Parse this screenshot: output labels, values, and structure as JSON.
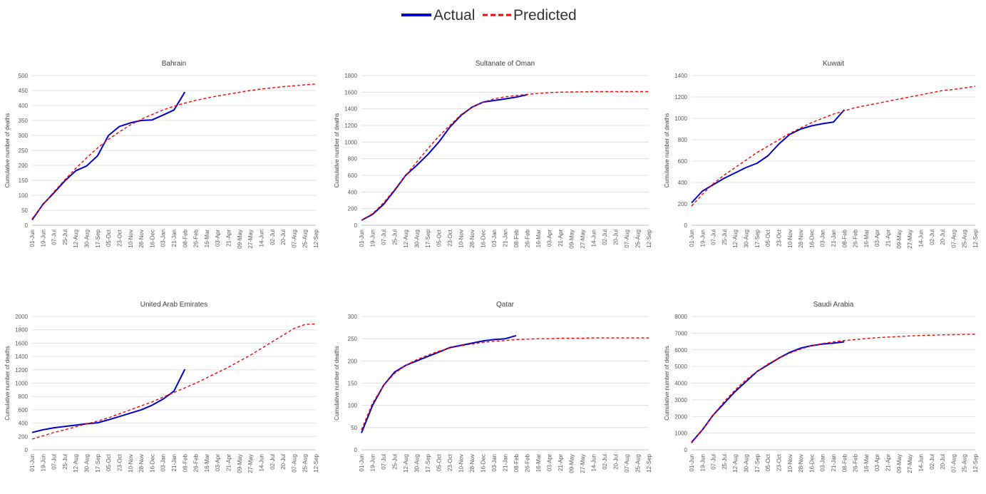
{
  "legend": {
    "actual_label": "Actual",
    "predicted_label": "Predicted",
    "actual_color": "#0000cc",
    "predicted_color": "#ff0000"
  },
  "chart_data": [
    {
      "type": "line",
      "title": "Bahrain",
      "ylabel": "Cumulative number of deaths",
      "ylim": [
        0,
        500
      ],
      "yticks": [
        0,
        50,
        100,
        150,
        200,
        250,
        300,
        350,
        400,
        450,
        500
      ],
      "categories": [
        "01-Jun",
        "19-Jun",
        "07-Jul",
        "25-Jul",
        "12-Aug",
        "30-Aug",
        "17-Sep",
        "05-Oct",
        "23-Oct",
        "10-Nov",
        "28-Nov",
        "16-Dec",
        "03-Jan",
        "21-Jan",
        "08-Feb",
        "26-Feb",
        "16-Mar",
        "03-Apr",
        "21-Apr",
        "09-May",
        "27-May",
        "14-Jun",
        "02-Jul",
        "20-Jul",
        "07-Aug",
        "25-Aug",
        "12-Sep"
      ],
      "series": [
        {
          "name": "Actual",
          "x": [
            0,
            1,
            2,
            3,
            4,
            5,
            6,
            7,
            8,
            9,
            10,
            11,
            12,
            13,
            14,
            15
          ],
          "values": [
            18,
            70,
            108,
            148,
            182,
            198,
            232,
            300,
            330,
            342,
            350,
            352,
            368,
            385,
            445,
            null
          ]
        },
        {
          "name": "Predicted",
          "x": [
            0,
            1,
            2,
            3,
            4,
            5,
            6,
            7,
            8,
            9,
            10,
            11,
            12,
            13,
            14,
            15,
            16,
            17,
            18,
            19,
            20,
            21,
            22,
            23,
            24,
            25,
            26
          ],
          "values": [
            22,
            68,
            112,
            152,
            190,
            225,
            258,
            287,
            312,
            335,
            354,
            370,
            385,
            398,
            408,
            417,
            425,
            432,
            438,
            444,
            450,
            455,
            459,
            463,
            466,
            469,
            472
          ]
        }
      ]
    },
    {
      "type": "line",
      "title": "Sultanate of Oman",
      "ylabel": "Cumulative number of deaths",
      "ylim": [
        0,
        1800
      ],
      "yticks": [
        0,
        200,
        400,
        600,
        800,
        1000,
        1200,
        1400,
        1600,
        1800
      ],
      "categories": [
        "01-Jun",
        "19-Jun",
        "07-Jul",
        "25-Jul",
        "12-Aug",
        "30-Aug",
        "17-Sep",
        "05-Oct",
        "23-Oct",
        "10-Nov",
        "28-Nov",
        "16-Dec",
        "03-Jan",
        "21-Jan",
        "08-Feb",
        "26-Feb",
        "16-Mar",
        "03-Apr",
        "21-Apr",
        "09-May",
        "27-May",
        "14-Jun",
        "02-Jul",
        "20-Jul",
        "07-Aug",
        "25-Aug",
        "12-Sep"
      ],
      "series": [
        {
          "name": "Actual",
          "x": [
            0,
            1,
            2,
            3,
            4,
            5,
            6,
            7,
            8,
            9,
            10,
            11,
            12,
            13,
            14,
            15
          ],
          "values": [
            60,
            130,
            250,
            420,
            600,
            720,
            850,
            1000,
            1180,
            1320,
            1420,
            1480,
            1500,
            1520,
            1540,
            1570
          ]
        },
        {
          "name": "Predicted",
          "x": [
            0,
            1,
            2,
            3,
            4,
            5,
            6,
            7,
            8,
            9,
            10,
            11,
            12,
            13,
            14,
            15,
            16,
            17,
            18,
            19,
            20,
            21,
            22,
            23,
            24,
            25,
            26
          ],
          "values": [
            60,
            140,
            270,
            430,
            600,
            760,
            920,
            1070,
            1200,
            1330,
            1420,
            1480,
            1520,
            1545,
            1560,
            1575,
            1585,
            1595,
            1600,
            1603,
            1605,
            1607,
            1608,
            1608,
            1608,
            1608,
            1608
          ]
        }
      ]
    },
    {
      "type": "line",
      "title": "Kuwait",
      "ylabel": "Cumulative number of deaths",
      "ylim": [
        0,
        1400
      ],
      "yticks": [
        0,
        200,
        400,
        600,
        800,
        1000,
        1200,
        1400
      ],
      "categories": [
        "01-Jun",
        "19-Jun",
        "07-Jul",
        "25-Jul",
        "12-Aug",
        "30-Aug",
        "17-Sep",
        "05-Oct",
        "23-Oct",
        "10-Nov",
        "28-Nov",
        "16-Dec",
        "03-Jan",
        "21-Jan",
        "08-Feb",
        "26-Feb",
        "16-Mar",
        "03-Apr",
        "21-Apr",
        "09-May",
        "27-May",
        "14-Jun",
        "02-Jul",
        "20-Jul",
        "07-Aug",
        "25-Aug",
        "12-Sep"
      ],
      "series": [
        {
          "name": "Actual",
          "x": [
            0,
            1,
            2,
            3,
            4,
            5,
            6,
            7,
            8,
            9,
            10,
            11,
            12,
            13,
            14,
            15
          ],
          "values": [
            210,
            320,
            380,
            440,
            490,
            540,
            580,
            650,
            760,
            850,
            900,
            930,
            950,
            965,
            1080,
            null
          ]
        },
        {
          "name": "Predicted",
          "x": [
            0,
            1,
            2,
            3,
            4,
            5,
            6,
            7,
            8,
            9,
            10,
            11,
            12,
            13,
            14,
            15,
            16,
            17,
            18,
            19,
            20,
            21,
            22,
            23,
            24,
            25,
            26
          ],
          "values": [
            180,
            290,
            390,
            470,
            540,
            610,
            680,
            740,
            800,
            860,
            910,
            960,
            1000,
            1040,
            1070,
            1100,
            1120,
            1140,
            1160,
            1180,
            1200,
            1220,
            1240,
            1260,
            1270,
            1285,
            1300
          ]
        }
      ]
    },
    {
      "type": "line",
      "title": "United Arab Emirates",
      "ylabel": "Cumulative number of deaths",
      "ylim": [
        0,
        2000
      ],
      "yticks": [
        0,
        200,
        400,
        600,
        800,
        1000,
        1200,
        1400,
        1600,
        1800,
        2000
      ],
      "categories": [
        "01-Jun",
        "19-Jun",
        "07-Jul",
        "25-Jul",
        "12-Aug",
        "30-Aug",
        "17-Sep",
        "05-Oct",
        "23-Oct",
        "10-Nov",
        "28-Nov",
        "16-Dec",
        "03-Jan",
        "21-Jan",
        "08-Feb",
        "26-Feb",
        "16-Mar",
        "03-Apr",
        "21-Apr",
        "09-May",
        "27-May",
        "14-Jun",
        "02-Jul",
        "20-Jul",
        "07-Aug",
        "25-Aug",
        "12-Sep"
      ],
      "series": [
        {
          "name": "Actual",
          "x": [
            0,
            1,
            2,
            3,
            4,
            5,
            6,
            7,
            8,
            9,
            10,
            11,
            12,
            13,
            14,
            15
          ],
          "values": [
            260,
            300,
            330,
            350,
            370,
            390,
            405,
            450,
            500,
            550,
            600,
            670,
            760,
            880,
            1210,
            null
          ]
        },
        {
          "name": "Predicted",
          "x": [
            0,
            1,
            2,
            3,
            4,
            5,
            6,
            7,
            8,
            9,
            10,
            11,
            12,
            13,
            14,
            15,
            16,
            17,
            18,
            19,
            20,
            21,
            22,
            23,
            24,
            25,
            26
          ],
          "values": [
            160,
            210,
            260,
            300,
            345,
            390,
            430,
            480,
            540,
            600,
            660,
            720,
            790,
            860,
            930,
            1000,
            1080,
            1160,
            1240,
            1330,
            1420,
            1520,
            1620,
            1720,
            1820,
            1880,
            1890
          ]
        }
      ]
    },
    {
      "type": "line",
      "title": "Qatar",
      "ylabel": "Cumulative number of deaths",
      "ylim": [
        0,
        300
      ],
      "yticks": [
        0,
        50,
        100,
        150,
        200,
        250,
        300
      ],
      "categories": [
        "01-Jun",
        "19-Jun",
        "07-Jul",
        "25-Jul",
        "12-Aug",
        "30-Aug",
        "17-Sep",
        "05-Oct",
        "23-Oct",
        "10-Nov",
        "28-Nov",
        "16-Dec",
        "03-Jan",
        "21-Jan",
        "08-Feb",
        "26-Feb",
        "16-Mar",
        "03-Apr",
        "21-Apr",
        "09-May",
        "27-May",
        "14-Jun",
        "02-Jul",
        "20-Jul",
        "07-Aug",
        "25-Aug",
        "12-Sep"
      ],
      "series": [
        {
          "name": "Actual",
          "x": [
            0,
            1,
            2,
            3,
            4,
            5,
            6,
            7,
            8,
            9,
            10,
            11,
            12,
            13,
            14,
            15
          ],
          "values": [
            38,
            100,
            145,
            175,
            190,
            200,
            210,
            220,
            230,
            235,
            240,
            245,
            248,
            250,
            257,
            null
          ]
        },
        {
          "name": "Predicted",
          "x": [
            0,
            1,
            2,
            3,
            4,
            5,
            6,
            7,
            8,
            9,
            10,
            11,
            12,
            13,
            14,
            15,
            16,
            17,
            18,
            19,
            20,
            21,
            22,
            23,
            24,
            25,
            26
          ],
          "values": [
            45,
            105,
            145,
            172,
            190,
            203,
            213,
            222,
            229,
            234,
            238,
            242,
            244,
            246,
            248,
            249,
            250,
            250,
            251,
            251,
            251,
            252,
            252,
            252,
            252,
            252,
            252
          ]
        }
      ]
    },
    {
      "type": "line",
      "title": "Saudi Arabia",
      "ylabel": "Cumulative number of deaths",
      "ylim": [
        0,
        8000
      ],
      "yticks": [
        0,
        1000,
        2000,
        3000,
        4000,
        5000,
        6000,
        7000,
        8000
      ],
      "categories": [
        "01-Jun",
        "19-Jun",
        "07-Jul",
        "25-Jul",
        "12-Aug",
        "30-Aug",
        "17-Sep",
        "05-Oct",
        "23-Oct",
        "10-Nov",
        "28-Nov",
        "16-Dec",
        "03-Jan",
        "21-Jan",
        "08-Feb",
        "26-Feb",
        "16-Mar",
        "03-Apr",
        "21-Apr",
        "09-May",
        "27-May",
        "14-Jun",
        "02-Jul",
        "20-Jul",
        "07-Aug",
        "25-Aug",
        "12-Sep"
      ],
      "series": [
        {
          "name": "Actual",
          "x": [
            0,
            1,
            2,
            3,
            4,
            5,
            6,
            7,
            8,
            9,
            10,
            11,
            12,
            13,
            14,
            15
          ],
          "values": [
            450,
            1200,
            2100,
            2800,
            3500,
            4100,
            4700,
            5100,
            5500,
            5850,
            6100,
            6250,
            6350,
            6400,
            6480,
            null
          ]
        },
        {
          "name": "Predicted",
          "x": [
            0,
            1,
            2,
            3,
            4,
            5,
            6,
            7,
            8,
            9,
            10,
            11,
            12,
            13,
            14,
            15,
            16,
            17,
            18,
            19,
            20,
            21,
            22,
            23,
            24,
            25,
            26
          ],
          "values": [
            400,
            1200,
            2100,
            2900,
            3600,
            4200,
            4700,
            5150,
            5500,
            5800,
            6050,
            6250,
            6380,
            6480,
            6560,
            6620,
            6680,
            6730,
            6770,
            6800,
            6830,
            6860,
            6880,
            6900,
            6910,
            6920,
            6930
          ]
        }
      ]
    }
  ]
}
